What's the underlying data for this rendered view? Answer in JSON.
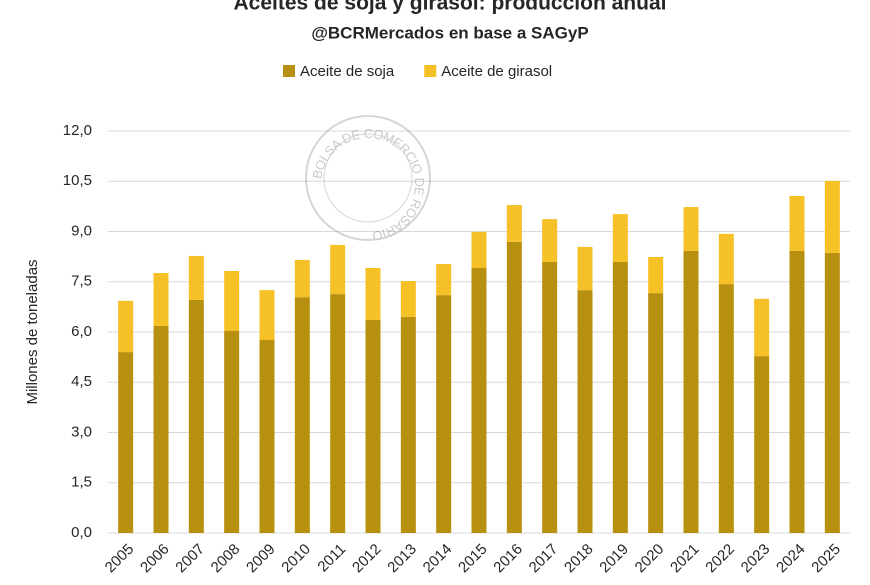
{
  "chart_data": {
    "type": "stacked-bar",
    "title": "Aceites de soja y girasol: producción anual",
    "subtitle": "@BCRMercados en base a SAGyP",
    "y_label": "Millones de toneladas",
    "watermark": "BOLSA DE COMERCIO DE ROSARIO",
    "categories": [
      "2005",
      "2006",
      "2007",
      "2008",
      "2009",
      "2010",
      "2011",
      "2012",
      "2013",
      "2014",
      "2015",
      "2016",
      "2017",
      "2018",
      "2019",
      "2020",
      "2021",
      "2022",
      "2023",
      "2024",
      "2025"
    ],
    "series": [
      {
        "name": "Aceite de soja",
        "color": "#b8900f",
        "values": [
          5.4,
          6.18,
          6.96,
          6.03,
          5.76,
          7.04,
          7.13,
          6.36,
          6.45,
          7.1,
          7.91,
          8.69,
          8.09,
          7.25,
          8.09,
          7.16,
          8.42,
          7.43,
          5.28,
          8.42,
          8.36
        ]
      },
      {
        "name": "Aceite de girasol",
        "color": "#f5c126",
        "values": [
          1.53,
          1.58,
          1.31,
          1.79,
          1.49,
          1.11,
          1.47,
          1.55,
          1.07,
          0.93,
          1.08,
          1.1,
          1.28,
          1.29,
          1.43,
          1.08,
          1.31,
          1.5,
          1.71,
          1.64,
          2.15
        ]
      }
    ],
    "ylim": [
      0,
      12
    ],
    "yticks": [
      {
        "value": 0,
        "label": "0,0"
      },
      {
        "value": 1.5,
        "label": "1,5"
      },
      {
        "value": 3,
        "label": "3,0"
      },
      {
        "value": 4.5,
        "label": "4,5"
      },
      {
        "value": 6,
        "label": "6,0"
      },
      {
        "value": 7.5,
        "label": "7,5"
      },
      {
        "value": 9,
        "label": "9,0"
      },
      {
        "value": 10.5,
        "label": "10,5"
      },
      {
        "value": 12,
        "label": "12,0"
      }
    ],
    "grid": true,
    "legend": "top"
  }
}
